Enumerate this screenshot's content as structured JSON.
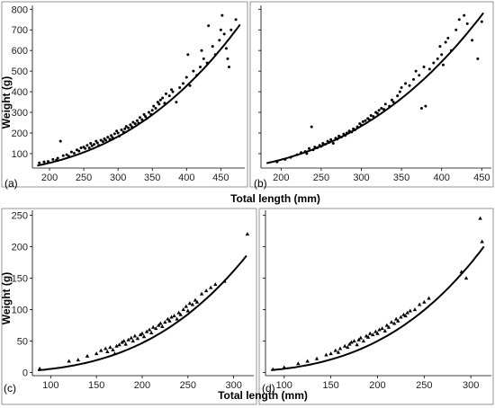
{
  "chart_data": [
    {
      "type": "scatter",
      "panel_label": "(a)",
      "xlabel": "",
      "ylabel": "Weight (g)",
      "xlim": [
        175,
        485
      ],
      "ylim": [
        30,
        810
      ],
      "x_ticks": [
        200,
        250,
        300,
        350,
        400,
        450
      ],
      "y_ticks": [
        100,
        200,
        300,
        400,
        500,
        600,
        700,
        800
      ],
      "marker": "circle",
      "fit": {
        "a": 8.5e-06,
        "b": 2.96,
        "x_range": [
          182,
          478
        ]
      },
      "points": [
        [
          185,
          55
        ],
        [
          192,
          60
        ],
        [
          198,
          62
        ],
        [
          205,
          72
        ],
        [
          210,
          68
        ],
        [
          212,
          78
        ],
        [
          216,
          160
        ],
        [
          220,
          90
        ],
        [
          225,
          95
        ],
        [
          228,
          88
        ],
        [
          232,
          108
        ],
        [
          236,
          102
        ],
        [
          240,
          118
        ],
        [
          243,
          112
        ],
        [
          246,
          128
        ],
        [
          250,
          132
        ],
        [
          252,
          125
        ],
        [
          255,
          140
        ],
        [
          258,
          128
        ],
        [
          260,
          150
        ],
        [
          262,
          138
        ],
        [
          265,
          145
        ],
        [
          268,
          160
        ],
        [
          270,
          152
        ],
        [
          272,
          140
        ],
        [
          275,
          165
        ],
        [
          278,
          158
        ],
        [
          280,
          172
        ],
        [
          282,
          165
        ],
        [
          285,
          180
        ],
        [
          288,
          170
        ],
        [
          290,
          188
        ],
        [
          292,
          178
        ],
        [
          295,
          196
        ],
        [
          298,
          210
        ],
        [
          300,
          200
        ],
        [
          302,
          185
        ],
        [
          305,
          215
        ],
        [
          308,
          205
        ],
        [
          310,
          220
        ],
        [
          312,
          232
        ],
        [
          315,
          225
        ],
        [
          318,
          240
        ],
        [
          320,
          230
        ],
        [
          322,
          252
        ],
        [
          325,
          245
        ],
        [
          328,
          260
        ],
        [
          330,
          248
        ],
        [
          332,
          275
        ],
        [
          335,
          265
        ],
        [
          338,
          290
        ],
        [
          340,
          280
        ],
        [
          342,
          270
        ],
        [
          345,
          300
        ],
        [
          348,
          290
        ],
        [
          350,
          310
        ],
        [
          352,
          330
        ],
        [
          355,
          320
        ],
        [
          358,
          350
        ],
        [
          360,
          340
        ],
        [
          362,
          360
        ],
        [
          365,
          370
        ],
        [
          368,
          345
        ],
        [
          370,
          390
        ],
        [
          375,
          380
        ],
        [
          378,
          410
        ],
        [
          380,
          400
        ],
        [
          385,
          350
        ],
        [
          390,
          420
        ],
        [
          395,
          440
        ],
        [
          400,
          470
        ],
        [
          402,
          580
        ],
        [
          405,
          430
        ],
        [
          410,
          500
        ],
        [
          415,
          480
        ],
        [
          420,
          520
        ],
        [
          422,
          600
        ],
        [
          425,
          560
        ],
        [
          430,
          540
        ],
        [
          432,
          720
        ],
        [
          438,
          620
        ],
        [
          442,
          580
        ],
        [
          448,
          650
        ],
        [
          450,
          700
        ],
        [
          452,
          770
        ],
        [
          455,
          680
        ],
        [
          458,
          610
        ],
        [
          460,
          560
        ],
        [
          462,
          520
        ],
        [
          465,
          700
        ],
        [
          472,
          750
        ]
      ]
    },
    {
      "type": "scatter",
      "panel_label": "(b)",
      "xlabel": "",
      "ylabel": "",
      "xlim": [
        175,
        462
      ],
      "ylim": [
        30,
        810
      ],
      "x_ticks": [
        200,
        250,
        300,
        350,
        400,
        450
      ],
      "y_ticks": [
        100,
        200,
        300,
        400,
        500,
        600,
        700,
        800
      ],
      "marker": "circle",
      "fit": {
        "a": 1.15e-05,
        "b": 2.95,
        "x_range": [
          182,
          452
        ]
      },
      "points": [
        [
          195,
          60
        ],
        [
          205,
          72
        ],
        [
          212,
          82
        ],
        [
          220,
          95
        ],
        [
          225,
          105
        ],
        [
          230,
          110
        ],
        [
          232,
          100
        ],
        [
          235,
          125
        ],
        [
          238,
          230
        ],
        [
          240,
          118
        ],
        [
          242,
          132
        ],
        [
          245,
          128
        ],
        [
          248,
          140
        ],
        [
          250,
          135
        ],
        [
          252,
          150
        ],
        [
          255,
          145
        ],
        [
          258,
          160
        ],
        [
          260,
          155
        ],
        [
          262,
          168
        ],
        [
          265,
          150
        ],
        [
          268,
          175
        ],
        [
          270,
          170
        ],
        [
          272,
          185
        ],
        [
          275,
          180
        ],
        [
          278,
          195
        ],
        [
          280,
          188
        ],
        [
          282,
          200
        ],
        [
          285,
          210
        ],
        [
          288,
          205
        ],
        [
          290,
          220
        ],
        [
          292,
          215
        ],
        [
          295,
          230
        ],
        [
          298,
          245
        ],
        [
          300,
          238
        ],
        [
          302,
          255
        ],
        [
          305,
          260
        ],
        [
          308,
          270
        ],
        [
          310,
          265
        ],
        [
          312,
          285
        ],
        [
          315,
          280
        ],
        [
          318,
          300
        ],
        [
          320,
          295
        ],
        [
          322,
          310
        ],
        [
          325,
          320
        ],
        [
          328,
          315
        ],
        [
          330,
          340
        ],
        [
          335,
          330
        ],
        [
          338,
          360
        ],
        [
          340,
          350
        ],
        [
          345,
          380
        ],
        [
          348,
          400
        ],
        [
          350,
          420
        ],
        [
          355,
          440
        ],
        [
          360,
          430
        ],
        [
          365,
          460
        ],
        [
          368,
          500
        ],
        [
          372,
          480
        ],
        [
          375,
          320
        ],
        [
          378,
          520
        ],
        [
          380,
          330
        ],
        [
          385,
          510
        ],
        [
          390,
          540
        ],
        [
          395,
          560
        ],
        [
          398,
          620
        ],
        [
          400,
          580
        ],
        [
          402,
          530
        ],
        [
          405,
          640
        ],
        [
          408,
          660
        ],
        [
          412,
          600
        ],
        [
          418,
          700
        ],
        [
          422,
          750
        ],
        [
          428,
          770
        ],
        [
          432,
          730
        ],
        [
          438,
          650
        ],
        [
          445,
          560
        ],
        [
          450,
          740
        ]
      ]
    },
    {
      "type": "scatter",
      "panel_label": "(c)",
      "xlabel": "Total length (mm)",
      "ylabel": "Weight (g)",
      "xlim": [
        80,
        322
      ],
      "ylim": [
        -5,
        255
      ],
      "x_ticks": [
        100,
        150,
        200,
        250,
        300
      ],
      "y_ticks": [
        0,
        50,
        100,
        150,
        200,
        250
      ],
      "marker": "triangle",
      "fit": {
        "a": 4.5e-06,
        "b": 3.05,
        "x_range": [
          86,
          314
        ]
      },
      "points": [
        [
          88,
          6
        ],
        [
          120,
          18
        ],
        [
          130,
          20
        ],
        [
          140,
          26
        ],
        [
          150,
          30
        ],
        [
          155,
          35
        ],
        [
          160,
          38
        ],
        [
          162,
          33
        ],
        [
          165,
          40
        ],
        [
          168,
          36
        ],
        [
          170,
          30
        ],
        [
          172,
          42
        ],
        [
          175,
          44
        ],
        [
          178,
          48
        ],
        [
          180,
          50
        ],
        [
          182,
          45
        ],
        [
          185,
          52
        ],
        [
          188,
          55
        ],
        [
          190,
          50
        ],
        [
          192,
          58
        ],
        [
          195,
          54
        ],
        [
          198,
          60
        ],
        [
          200,
          62
        ],
        [
          202,
          57
        ],
        [
          205,
          65
        ],
        [
          208,
          68
        ],
        [
          210,
          63
        ],
        [
          212,
          72
        ],
        [
          215,
          70
        ],
        [
          218,
          75
        ],
        [
          220,
          78
        ],
        [
          222,
          73
        ],
        [
          225,
          80
        ],
        [
          228,
          85
        ],
        [
          230,
          82
        ],
        [
          232,
          88
        ],
        [
          235,
          90
        ],
        [
          238,
          85
        ],
        [
          240,
          95
        ],
        [
          242,
          92
        ],
        [
          245,
          100
        ],
        [
          248,
          105
        ],
        [
          250,
          98
        ],
        [
          252,
          110
        ],
        [
          255,
          108
        ],
        [
          258,
          115
        ],
        [
          260,
          112
        ],
        [
          265,
          125
        ],
        [
          270,
          130
        ],
        [
          275,
          135
        ],
        [
          280,
          140
        ],
        [
          290,
          145
        ],
        [
          315,
          220
        ]
      ]
    },
    {
      "type": "scatter",
      "panel_label": "(d)",
      "xlabel": "",
      "ylabel": "",
      "xlim": [
        80,
        322
      ],
      "ylim": [
        -5,
        255
      ],
      "x_ticks": [
        100,
        150,
        200,
        250,
        300
      ],
      "y_ticks": [
        0,
        50,
        100,
        150,
        200,
        250
      ],
      "marker": "triangle",
      "fit": {
        "a": 4.2e-06,
        "b": 3.075,
        "x_range": [
          86,
          314
        ]
      },
      "points": [
        [
          88,
          5
        ],
        [
          100,
          8
        ],
        [
          115,
          14
        ],
        [
          125,
          18
        ],
        [
          135,
          22
        ],
        [
          145,
          28
        ],
        [
          150,
          30
        ],
        [
          155,
          35
        ],
        [
          158,
          32
        ],
        [
          160,
          38
        ],
        [
          165,
          42
        ],
        [
          168,
          40
        ],
        [
          170,
          45
        ],
        [
          172,
          48
        ],
        [
          175,
          50
        ],
        [
          178,
          44
        ],
        [
          180,
          52
        ],
        [
          182,
          55
        ],
        [
          185,
          50
        ],
        [
          188,
          58
        ],
        [
          190,
          56
        ],
        [
          192,
          62
        ],
        [
          195,
          60
        ],
        [
          198,
          65
        ],
        [
          200,
          62
        ],
        [
          202,
          68
        ],
        [
          205,
          70
        ],
        [
          208,
          66
        ],
        [
          210,
          75
        ],
        [
          212,
          72
        ],
        [
          215,
          80
        ],
        [
          218,
          78
        ],
        [
          220,
          85
        ],
        [
          222,
          82
        ],
        [
          225,
          88
        ],
        [
          228,
          92
        ],
        [
          230,
          90
        ],
        [
          232,
          95
        ],
        [
          235,
          98
        ],
        [
          240,
          100
        ],
        [
          245,
          108
        ],
        [
          250,
          112
        ],
        [
          255,
          118
        ],
        [
          290,
          160
        ],
        [
          295,
          150
        ],
        [
          310,
          245
        ],
        [
          312,
          208
        ]
      ]
    }
  ]
}
